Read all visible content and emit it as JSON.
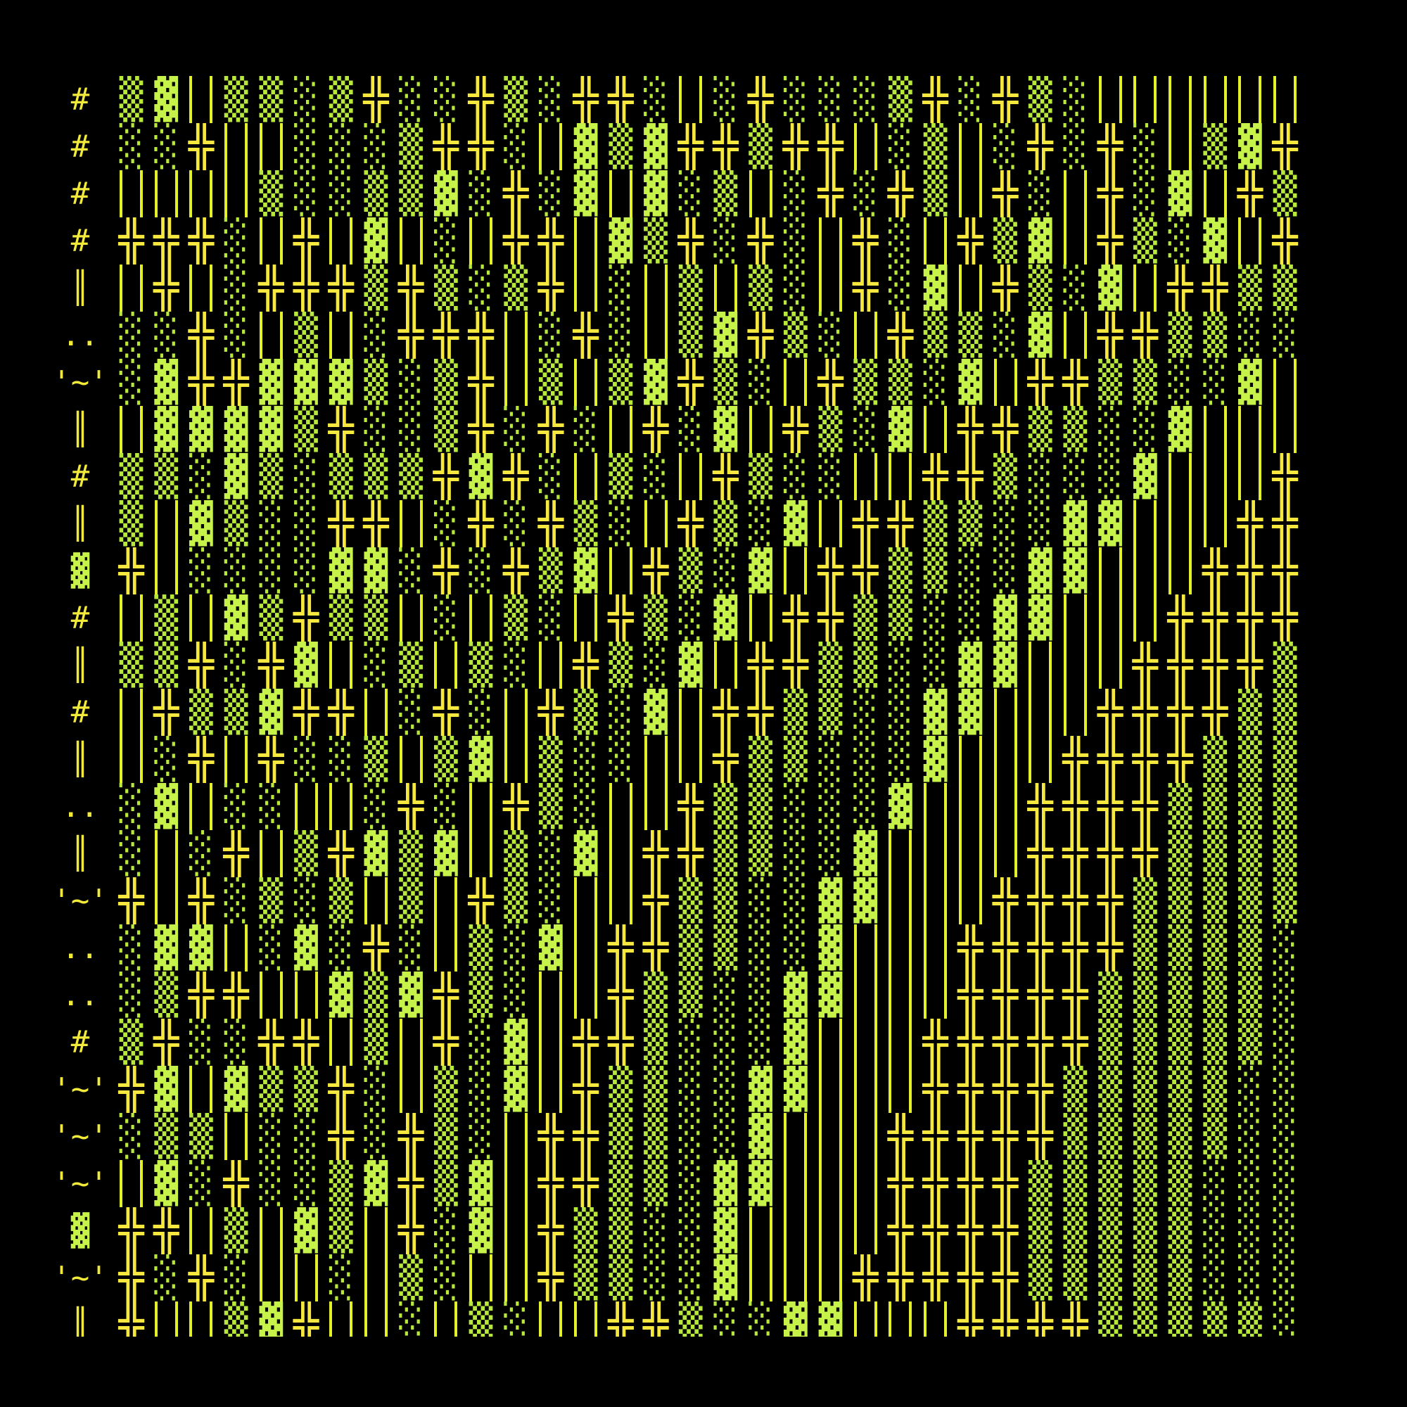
{
  "colors": {
    "background": "#000000",
    "hash_and_cross": "#f2ea3a",
    "shade": "#c6f24a",
    "bars": "#e4f02a"
  },
  "rows": [
    {
      "label": "#",
      "cells": "▒▓║▒▒░▒╬░░╬▒░╬╬░║░╬░░░▒╬░╬▒░║║║║║║▓░░"
    },
    {
      "label": "#",
      "cells": "░░╬║║░░░▒╬╬░║▓▒▓╬╬▒╬╬║░▒║░╬░╬░║▒▓╬▒▓"
    },
    {
      "label": "#",
      "cells": "║║║║▒░░▒▒▓░╬░▓║▓░▒║░╬░╬▒║╬░║╬░▓║╬▒░║"
    },
    {
      "label": "#",
      "cells": "╬╬╬░║╬║▓║░║╬╬║▓▒╬░╬░║╬░║╬▒▓║╬▒░▓║╬╬░"
    },
    {
      "label": "║",
      "cells": "║╬║░╬╬╬▒╬▒░▒╬║░║▒║▒░║╬░▓║╬▒░▓║╬╬▒▒░░"
    },
    {
      "label": "..",
      "cells": "░░╬░║▒║░╬╬╬║░╬░║▒▓╬▒░║╬▒▒░▓║╬╬▒▒░░▓║"
    },
    {
      "label": "'~'",
      "cells": "░▓╬╬▓▓▓▒░▒╬║▒║▒▓╬▒░║╬▒▒░▓║╬╬▒▒░░▓║║║"
    },
    {
      "label": "║",
      "cells": "║▓▓▓▓▒╬░░▒╬░╬░║╬░▓║╬▒░▓║╬╬▒▒░░▓║║║╬░"
    },
    {
      "label": "#",
      "cells": "▒▒░▓▒░▒▒▒╬▓╬░║▒░║╬▒░░║║╬╬▒░░░▓║║║╬╬░"
    },
    {
      "label": "║",
      "cells": "▒║▓▒░░╬╬║░╬░╬▒░║╬▒░▓║╬╬▒▒░░▓▓║║║╬╬╬▒"
    },
    {
      "label": "▓",
      "cells": "╬║░░░░▓▓░╬░╬▒▓║╬▒░▓║╬╬▒▒░░▓▓║║║╬╬╬▒▒"
    },
    {
      "label": "#",
      "cells": "║▒║▓▒╬▒▒║░║▒░║╬▒░▓║╬╬▒▒░░▓▓║║║╬╬╬╬▒▒"
    },
    {
      "label": "║",
      "cells": "▒▒╬░╬▓║░▒║▒░║╬▒░▓║╬╬▒▒░░▓▓║║║╬╬╬╬▒▒░"
    },
    {
      "label": "#",
      "cells": "║╬▒▒▓╬╬║░╬░║╬▒░▓║╬╬▒▒░░▓▓║║║╬╬╬╬▒▒▒▒"
    },
    {
      "label": "║",
      "cells": "║░╬║╬░░▒║▒▓║▒░░║║╬▒▒░░░▓║║║╬╬╬╬▒▒▒▒"
    },
    {
      "label": "..",
      "cells": "░▓║░░║║░╬░║╬▒░║║╬▒▒░░░▓║║║╬╬╬╬▒▒▒▒▒"
    },
    {
      "label": "║",
      "cells": "░║░╬║▒╬▓▒▓║▒░▓║╬╬▒▒░░▓║║║║╬╬╬╬▒▒▒▒▒"
    },
    {
      "label": "'~'",
      "cells": "╬║╬░▒░▒║▒║╬▒░║║╬▒▒░░▓▓║║║╬╬╬╬▒▒▒▒▒▒"
    },
    {
      "label": "..",
      "cells": "░▓▓║░▓░╬░║▒░▓║╬╬▒▒░░▓║║║╬╬╬╬╬▒▒▒▒░░"
    },
    {
      "label": "..",
      "cells": "░▒╬╬║║▓▒▓╬▒░║║╬▒▒░░▓▓║║║╬╬╬╬▒▒▒▒▒░░"
    },
    {
      "label": "#",
      "cells": "▒╬░░╬╬║▒║╬░▓║╬╬▒░░░▓║║║╬╬╬╬╬▒▒▒▒▒░░"
    },
    {
      "label": "'~'",
      "cells": "╬▓║▓▒▒╬░║▒░▓║╬▒▒░░▓▓║║║╬╬╬╬▒▒▒▒▒░░░"
    },
    {
      "label": "'~'",
      "cells": "░▒▒║░░╬░╬▒░║╬╬▒▒░░▓║║║╬╬╬╬╬▒▒▒▒▒░░░"
    },
    {
      "label": "'~'",
      "cells": "║▓░╬░░▒▓╬▒▓║╬╬▒▒░▓▓║║║╬╬╬╬▒▒▒▒▒░░░░"
    },
    {
      "label": "▓",
      "cells": "╬╬║▒║▓▒║╬░▓║╬▒▒░░▓║║║║╬╬╬╬▒▒▒▒▒░░░░"
    },
    {
      "label": "'~'",
      "cells": "╬░╬░║║░║▒░║║╬▒▒░░▓║║║╬╬╬╬╬▒▒▒▒▒░░░░"
    },
    {
      "label": "║",
      "cells": "╬║║▒▓╬║║░║▒░║║╬╬▒░░▓▓║║║╬╬╬╬▒▒▒▒▒░░░"
    }
  ]
}
